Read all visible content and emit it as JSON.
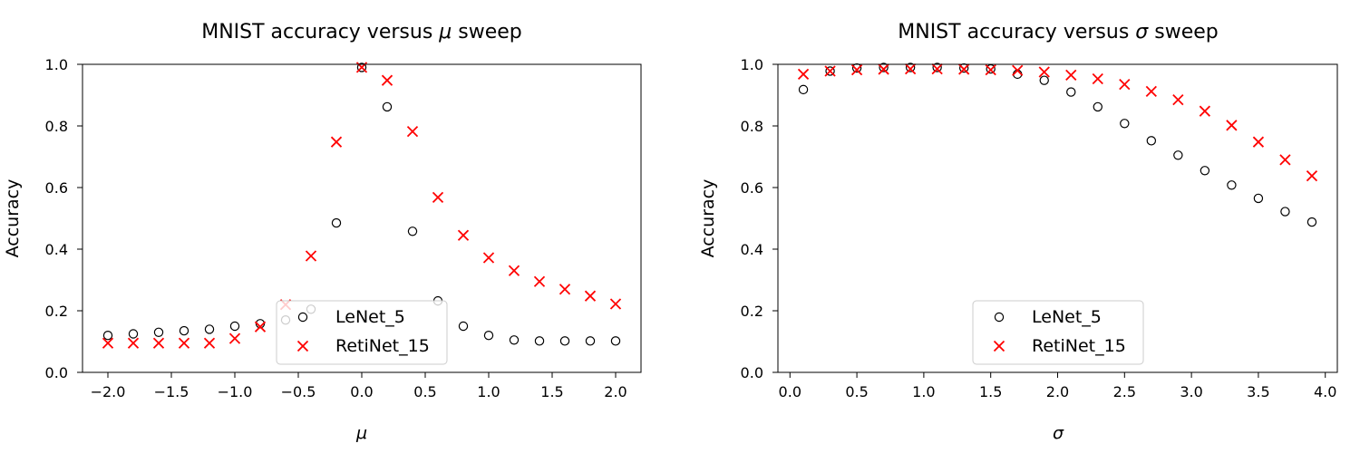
{
  "chart_data": [
    {
      "type": "scatter",
      "title": "MNIST accuracy versus μ sweep",
      "title_prefix": "MNIST accuracy versus ",
      "title_symbol": "μ",
      "title_suffix": " sweep",
      "xlabel": "μ",
      "ylabel": "Accuracy",
      "xlim": [
        -2.2,
        2.2
      ],
      "ylim": [
        0.0,
        1.0
      ],
      "xticks": [
        -2.0,
        -1.5,
        -1.0,
        -0.5,
        0.0,
        0.5,
        1.0,
        1.5,
        2.0
      ],
      "xtick_labels": [
        "−2.0",
        "−1.5",
        "−1.0",
        "−0.5",
        "0.0",
        "0.5",
        "1.0",
        "1.5",
        "2.0"
      ],
      "yticks": [
        0.0,
        0.2,
        0.4,
        0.6,
        0.8,
        1.0
      ],
      "ytick_labels": [
        "0.0",
        "0.2",
        "0.4",
        "0.6",
        "0.8",
        "1.0"
      ],
      "legend_position": "lower-center",
      "grid": false,
      "x": [
        -2.0,
        -1.8,
        -1.6,
        -1.4,
        -1.2,
        -1.0,
        -0.8,
        -0.6,
        -0.4,
        -0.2,
        0.0,
        0.2,
        0.4,
        0.6,
        0.8,
        1.0,
        1.2,
        1.4,
        1.6,
        1.8,
        2.0
      ],
      "series": [
        {
          "name": "LeNet_5",
          "marker": "o",
          "color": "#000000",
          "values": [
            0.12,
            0.125,
            0.13,
            0.135,
            0.14,
            0.15,
            0.158,
            0.17,
            0.205,
            0.485,
            0.99,
            0.862,
            0.458,
            0.232,
            0.15,
            0.12,
            0.105,
            0.102,
            0.102,
            0.102,
            0.102
          ]
        },
        {
          "name": "RetiNet_15",
          "marker": "x",
          "color": "#ff0000",
          "values": [
            0.095,
            0.095,
            0.095,
            0.095,
            0.095,
            0.11,
            0.148,
            0.22,
            0.378,
            0.748,
            0.99,
            0.948,
            0.782,
            0.568,
            0.445,
            0.372,
            0.33,
            0.295,
            0.27,
            0.248,
            0.222
          ]
        }
      ]
    },
    {
      "type": "scatter",
      "title": "MNIST accuracy versus σ sweep",
      "title_prefix": "MNIST accuracy versus ",
      "title_symbol": "σ",
      "title_suffix": " sweep",
      "xlabel": "σ",
      "ylabel": "Accuracy",
      "xlim": [
        -0.09,
        4.09
      ],
      "ylim": [
        0.0,
        1.0
      ],
      "xticks": [
        0.0,
        0.5,
        1.0,
        1.5,
        2.0,
        2.5,
        3.0,
        3.5,
        4.0
      ],
      "xtick_labels": [
        "0.0",
        "0.5",
        "1.0",
        "1.5",
        "2.0",
        "2.5",
        "3.0",
        "3.5",
        "4.0"
      ],
      "yticks": [
        0.0,
        0.2,
        0.4,
        0.6,
        0.8,
        1.0
      ],
      "ytick_labels": [
        "0.0",
        "0.2",
        "0.4",
        "0.6",
        "0.8",
        "1.0"
      ],
      "legend_position": "lower-center",
      "grid": false,
      "x": [
        0.1,
        0.3,
        0.5,
        0.7,
        0.9,
        1.1,
        1.3,
        1.5,
        1.7,
        1.9,
        2.1,
        2.3,
        2.5,
        2.7,
        2.9,
        3.1,
        3.3,
        3.5,
        3.7,
        3.9
      ],
      "series": [
        {
          "name": "LeNet_5",
          "marker": "o",
          "color": "#000000",
          "values": [
            0.918,
            0.978,
            0.988,
            0.99,
            0.99,
            0.99,
            0.988,
            0.985,
            0.968,
            0.948,
            0.91,
            0.862,
            0.808,
            0.752,
            0.705,
            0.655,
            0.608,
            0.565,
            0.522,
            0.488
          ]
        },
        {
          "name": "RetiNet_15",
          "marker": "x",
          "color": "#ff0000",
          "values": [
            0.968,
            0.978,
            0.982,
            0.984,
            0.985,
            0.985,
            0.984,
            0.982,
            0.98,
            0.975,
            0.965,
            0.953,
            0.935,
            0.912,
            0.885,
            0.848,
            0.802,
            0.748,
            0.69,
            0.638
          ]
        }
      ]
    }
  ]
}
